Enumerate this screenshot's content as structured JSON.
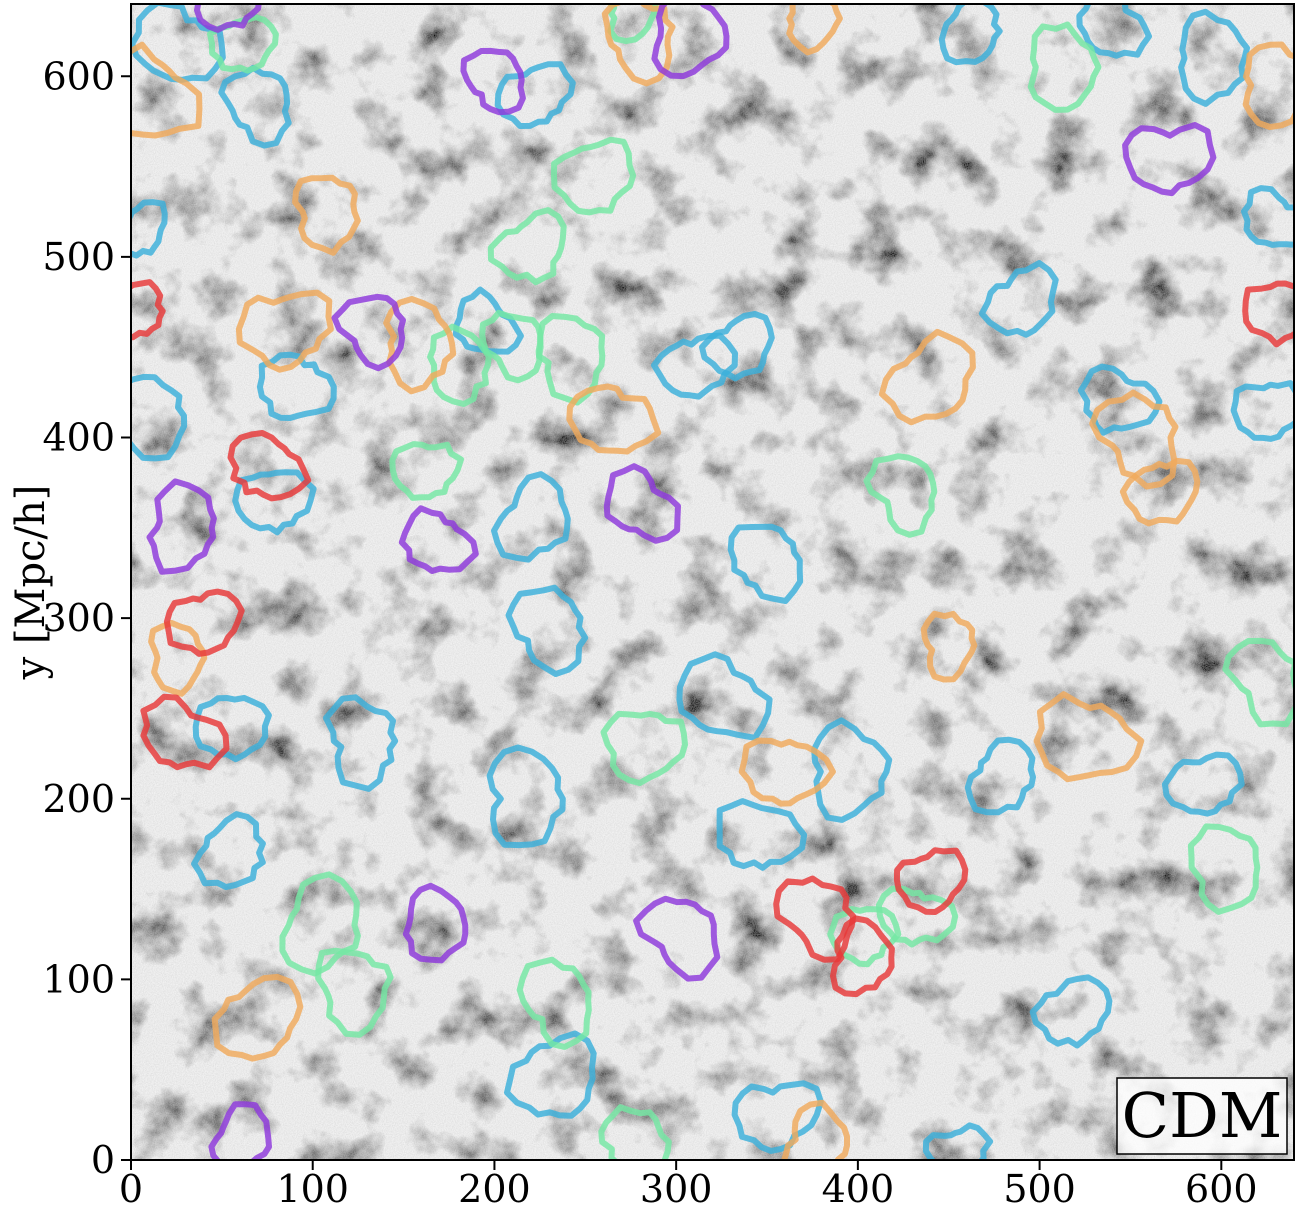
{
  "chart_data": {
    "type": "scatter",
    "xlabel": "",
    "ylabel": "y [Mpc/h]",
    "xlim": [
      0,
      640
    ],
    "ylim": [
      0,
      640
    ],
    "x_ticks": [
      "0",
      "100",
      "200",
      "300",
      "400",
      "500",
      "600"
    ],
    "y_ticks": [
      "0",
      "100",
      "200",
      "300",
      "400",
      "500",
      "600"
    ],
    "annotation": "CDM",
    "annotation_position": "bottom-right",
    "background": "grayscale dark-matter density field (cosmic web)",
    "grid": false,
    "colors": {
      "blue": "#3ab0da",
      "green": "#74e8a4",
      "orange": "#f0aa5c",
      "purple": "#8e38dc",
      "red": "#e83838"
    },
    "series": [
      {
        "color": "#3ab0da",
        "contours": [
          {
            "x": 25,
            "y": 618,
            "r": 22
          },
          {
            "x": 70,
            "y": 585,
            "r": 18
          },
          {
            "x": 222,
            "y": 590,
            "r": 18
          },
          {
            "x": 462,
            "y": 625,
            "r": 16
          },
          {
            "x": 540,
            "y": 628,
            "r": 17
          },
          {
            "x": 595,
            "y": 610,
            "r": 20
          },
          {
            "x": 5,
            "y": 515,
            "r": 14
          },
          {
            "x": 630,
            "y": 520,
            "r": 16
          },
          {
            "x": 490,
            "y": 475,
            "r": 18
          },
          {
            "x": 195,
            "y": 462,
            "r": 16
          },
          {
            "x": 310,
            "y": 440,
            "r": 18
          },
          {
            "x": 335,
            "y": 450,
            "r": 17
          },
          {
            "x": 90,
            "y": 428,
            "r": 18
          },
          {
            "x": 10,
            "y": 412,
            "r": 20
          },
          {
            "x": 543,
            "y": 420,
            "r": 18
          },
          {
            "x": 625,
            "y": 415,
            "r": 17
          },
          {
            "x": 78,
            "y": 365,
            "r": 18
          },
          {
            "x": 222,
            "y": 355,
            "r": 20
          },
          {
            "x": 350,
            "y": 332,
            "r": 20
          },
          {
            "x": 230,
            "y": 295,
            "r": 20
          },
          {
            "x": 325,
            "y": 255,
            "r": 22
          },
          {
            "x": 55,
            "y": 240,
            "r": 18
          },
          {
            "x": 127,
            "y": 232,
            "r": 20
          },
          {
            "x": 217,
            "y": 200,
            "r": 22
          },
          {
            "x": 395,
            "y": 215,
            "r": 22
          },
          {
            "x": 480,
            "y": 212,
            "r": 18
          },
          {
            "x": 590,
            "y": 208,
            "r": 18
          },
          {
            "x": 345,
            "y": 180,
            "r": 20
          },
          {
            "x": 55,
            "y": 170,
            "r": 18
          },
          {
            "x": 518,
            "y": 82,
            "r": 18
          },
          {
            "x": 233,
            "y": 45,
            "r": 22
          },
          {
            "x": 355,
            "y": 25,
            "r": 20
          },
          {
            "x": 455,
            "y": 5,
            "r": 14
          }
        ]
      },
      {
        "color": "#74e8a4",
        "contours": [
          {
            "x": 62,
            "y": 618,
            "r": 16
          },
          {
            "x": 275,
            "y": 638,
            "r": 15
          },
          {
            "x": 512,
            "y": 605,
            "r": 20
          },
          {
            "x": 255,
            "y": 545,
            "r": 20
          },
          {
            "x": 220,
            "y": 505,
            "r": 18
          },
          {
            "x": 242,
            "y": 445,
            "r": 20
          },
          {
            "x": 180,
            "y": 440,
            "r": 18
          },
          {
            "x": 210,
            "y": 452,
            "r": 16
          },
          {
            "x": 162,
            "y": 382,
            "r": 16
          },
          {
            "x": 425,
            "y": 370,
            "r": 18
          },
          {
            "x": 625,
            "y": 265,
            "r": 20
          },
          {
            "x": 283,
            "y": 230,
            "r": 20
          },
          {
            "x": 602,
            "y": 162,
            "r": 20
          },
          {
            "x": 105,
            "y": 130,
            "r": 22
          },
          {
            "x": 122,
            "y": 95,
            "r": 20
          },
          {
            "x": 235,
            "y": 88,
            "r": 20
          },
          {
            "x": 278,
            "y": 10,
            "r": 18
          },
          {
            "x": 403,
            "y": 125,
            "r": 16
          },
          {
            "x": 432,
            "y": 135,
            "r": 17
          }
        ]
      },
      {
        "color": "#f0aa5c",
        "contours": [
          {
            "x": 10,
            "y": 590,
            "r": 24
          },
          {
            "x": 280,
            "y": 622,
            "r": 20
          },
          {
            "x": 375,
            "y": 632,
            "r": 15
          },
          {
            "x": 630,
            "y": 595,
            "r": 20
          },
          {
            "x": 108,
            "y": 525,
            "r": 18
          },
          {
            "x": 85,
            "y": 460,
            "r": 22
          },
          {
            "x": 158,
            "y": 452,
            "r": 20
          },
          {
            "x": 265,
            "y": 410,
            "r": 20
          },
          {
            "x": 440,
            "y": 432,
            "r": 22
          },
          {
            "x": 555,
            "y": 400,
            "r": 22
          },
          {
            "x": 568,
            "y": 370,
            "r": 18
          },
          {
            "x": 25,
            "y": 278,
            "r": 16
          },
          {
            "x": 450,
            "y": 285,
            "r": 15
          },
          {
            "x": 525,
            "y": 232,
            "r": 24
          },
          {
            "x": 360,
            "y": 215,
            "r": 20
          },
          {
            "x": 70,
            "y": 78,
            "r": 22
          },
          {
            "x": 377,
            "y": 8,
            "r": 18
          }
        ]
      },
      {
        "color": "#8e38dc",
        "contours": [
          {
            "x": 55,
            "y": 642,
            "r": 16
          },
          {
            "x": 200,
            "y": 598,
            "r": 16
          },
          {
            "x": 307,
            "y": 622,
            "r": 20
          },
          {
            "x": 570,
            "y": 555,
            "r": 20
          },
          {
            "x": 133,
            "y": 460,
            "r": 18
          },
          {
            "x": 28,
            "y": 350,
            "r": 20
          },
          {
            "x": 168,
            "y": 342,
            "r": 17
          },
          {
            "x": 280,
            "y": 362,
            "r": 18
          },
          {
            "x": 168,
            "y": 130,
            "r": 18
          },
          {
            "x": 303,
            "y": 125,
            "r": 20
          },
          {
            "x": 60,
            "y": 12,
            "r": 16
          }
        ]
      },
      {
        "color": "#e83838",
        "contours": [
          {
            "x": 3,
            "y": 470,
            "r": 14
          },
          {
            "x": 633,
            "y": 470,
            "r": 18
          },
          {
            "x": 75,
            "y": 383,
            "r": 18
          },
          {
            "x": 40,
            "y": 298,
            "r": 18
          },
          {
            "x": 28,
            "y": 235,
            "r": 20
          },
          {
            "x": 378,
            "y": 135,
            "r": 20
          },
          {
            "x": 402,
            "y": 112,
            "r": 17
          },
          {
            "x": 440,
            "y": 155,
            "r": 17
          }
        ]
      }
    ]
  }
}
